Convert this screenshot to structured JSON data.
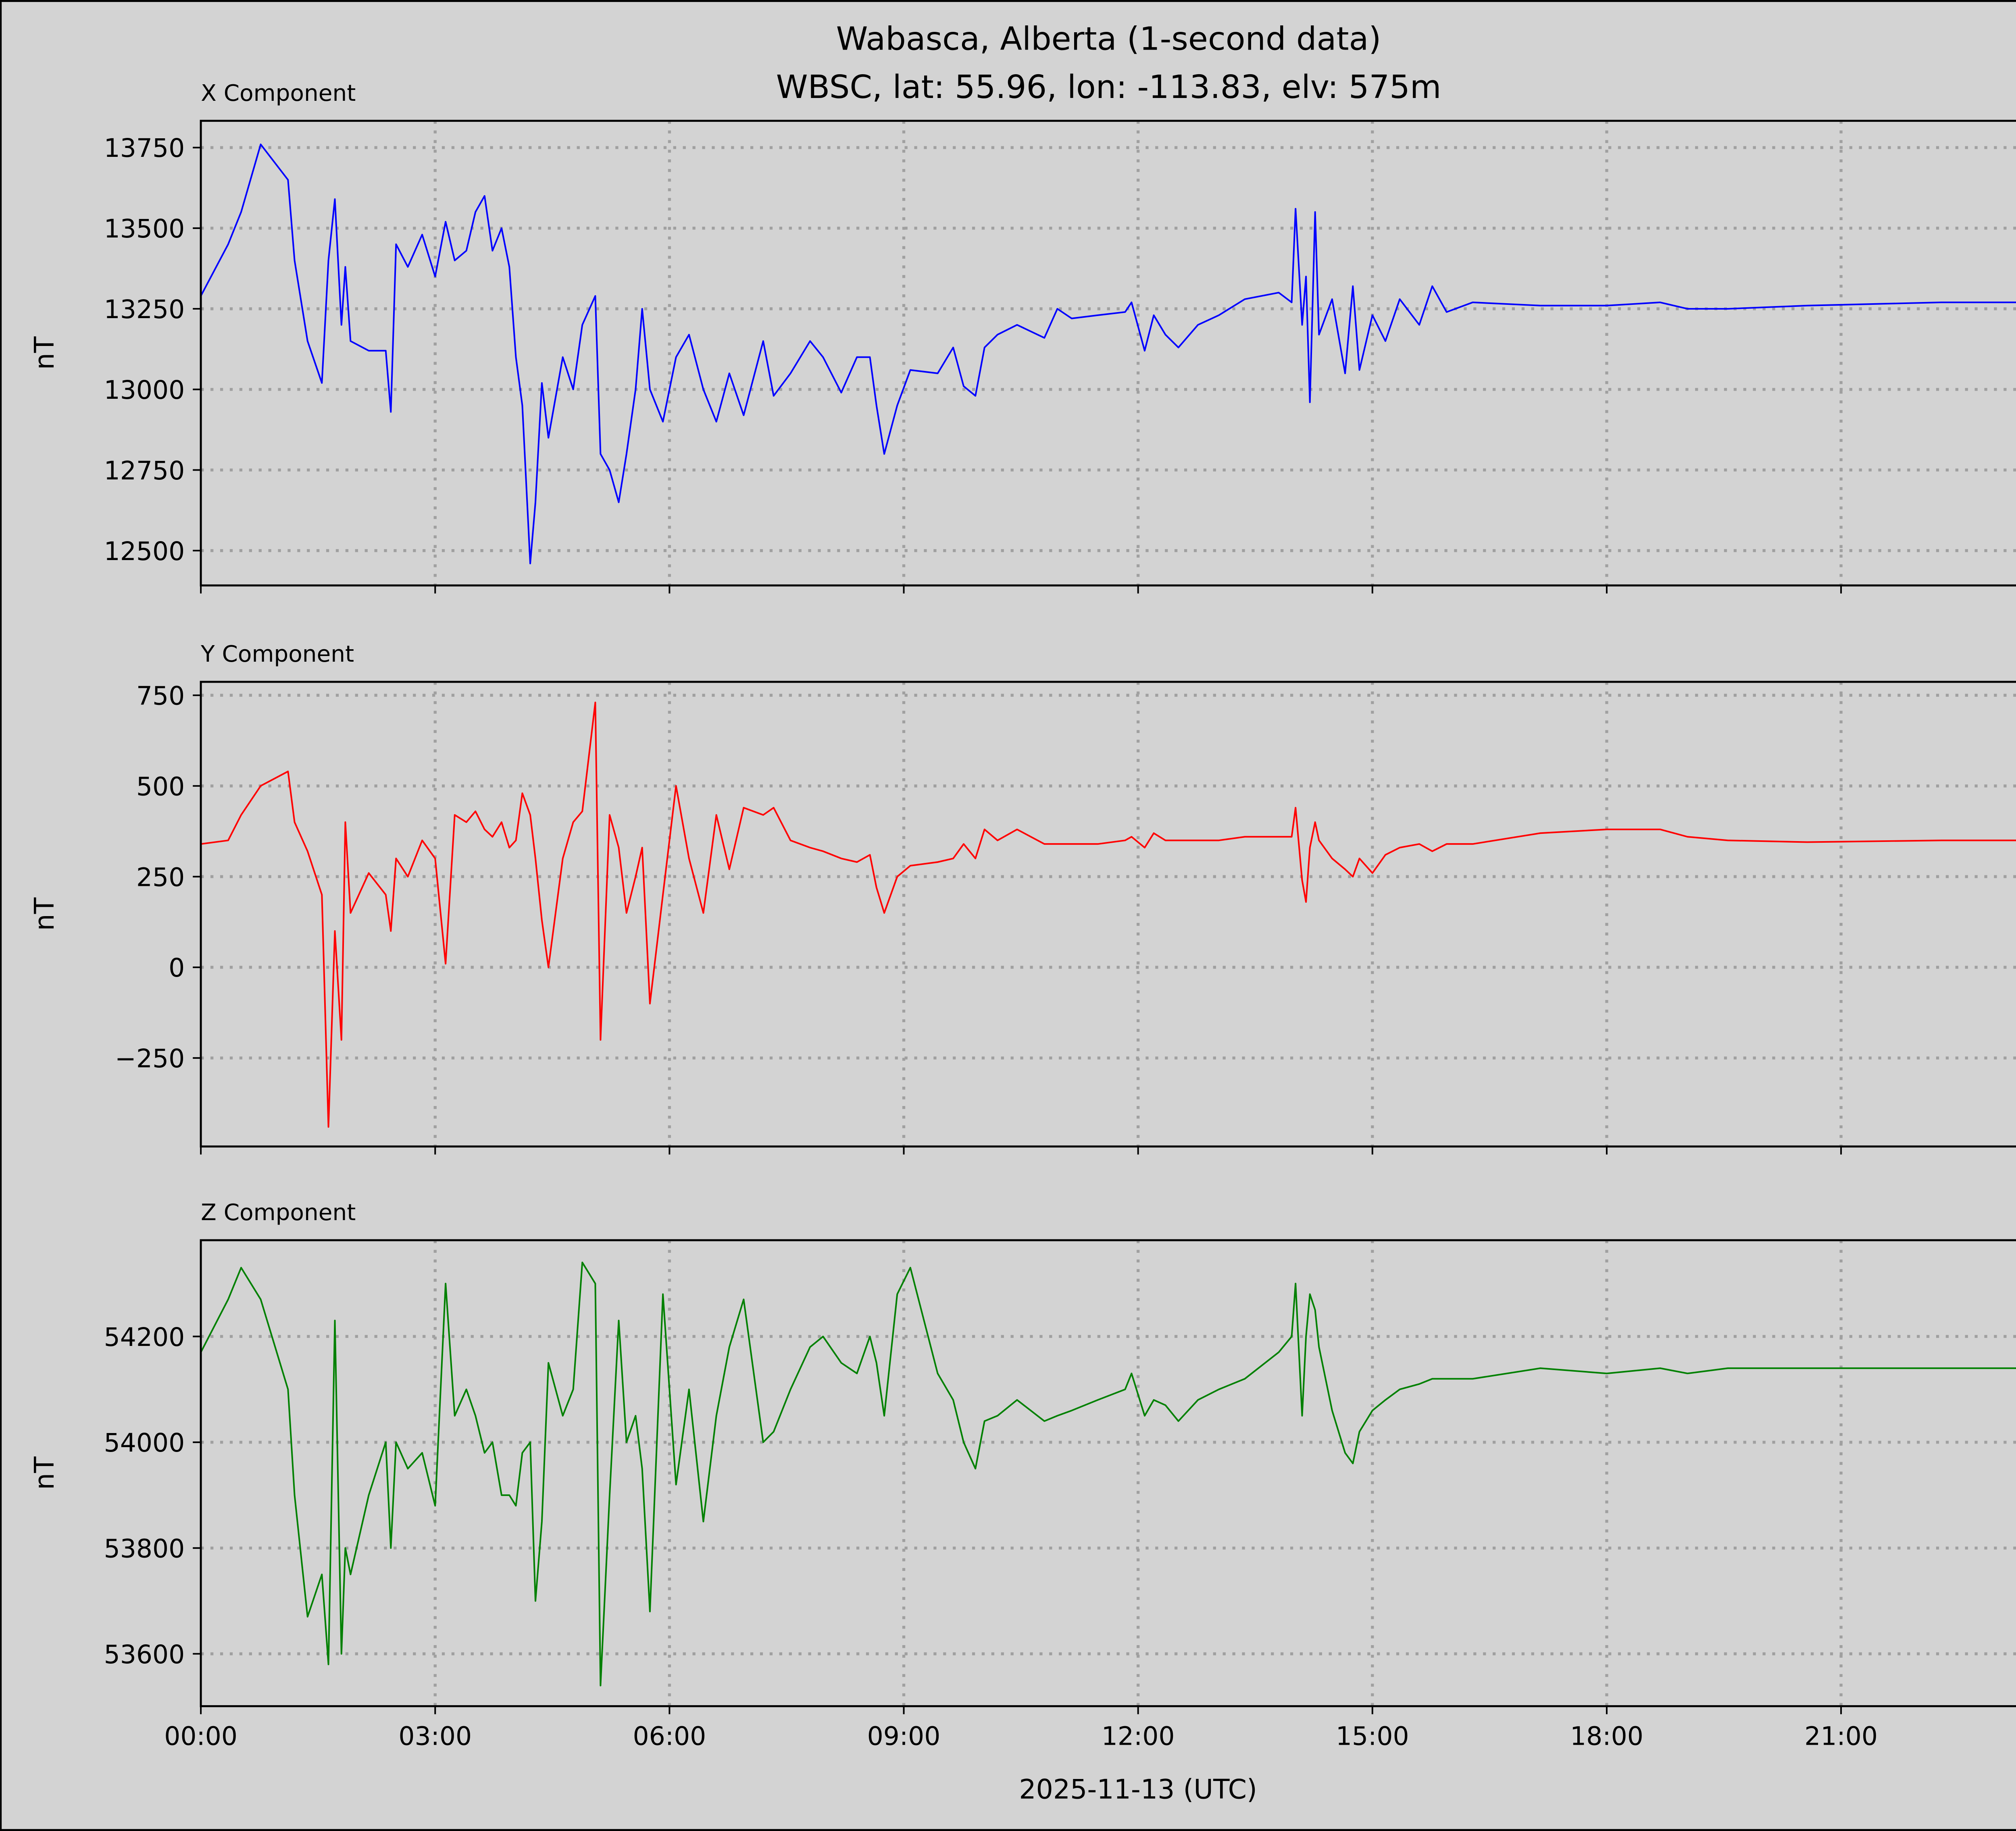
{
  "chart_data": [
    {
      "type": "line",
      "title": "Wabasca, Alberta (1-second data)",
      "subtitle": "WBSC, lat: 55.96, lon: -113.83, elv: 575m",
      "panel_title": "X Component",
      "ylabel": "nT",
      "xlabel": "",
      "color": "#0000ff",
      "ylim": [
        12392,
        13833
      ],
      "yticks": [
        12500,
        12750,
        13000,
        13250,
        13500,
        13750
      ],
      "ytick_labels": [
        "12500",
        "12750",
        "13000",
        "13250",
        "13500",
        "13750"
      ],
      "grid": true,
      "values": [
        13290,
        13450,
        13550,
        13760,
        13650,
        13400,
        13150,
        13020,
        13400,
        13590,
        13200,
        13380,
        13150,
        13120,
        13120,
        12930,
        13450,
        13380,
        13480,
        13350,
        13520,
        13400,
        13430,
        13550,
        13600,
        13430,
        13500,
        13380,
        13100,
        12950,
        12460,
        12650,
        13020,
        12850,
        13100,
        13000,
        13200,
        13290,
        12800,
        12750,
        12650,
        12800,
        13000,
        13250,
        13000,
        12900,
        13100,
        13170,
        13000,
        12900,
        13050,
        12920,
        13150,
        12980,
        13050,
        13150,
        13100,
        12990,
        13100,
        13100,
        12950,
        12800,
        12950,
        13060,
        13050,
        13130,
        13010,
        12980,
        13130,
        13170,
        13200,
        13160,
        13250,
        13220,
        13230,
        13240,
        13270,
        13120,
        13230,
        13170,
        13130,
        13200,
        13230,
        13280,
        13300,
        13270,
        13560,
        13200,
        13350,
        12960,
        13550,
        13170,
        13280,
        13050,
        13320,
        13060,
        13230,
        13150,
        13280,
        13200,
        13320,
        13240,
        13270,
        13260,
        13260,
        13270,
        13250,
        13250,
        13260,
        13270,
        13270
      ]
    },
    {
      "type": "line",
      "panel_title": "Y Component",
      "ylabel": "nT",
      "xlabel": "",
      "color": "#ff0000",
      "ylim": [
        -494,
        787
      ],
      "yticks": [
        -250,
        0,
        250,
        500,
        750
      ],
      "ytick_labels": [
        "−250",
        "0",
        "250",
        "500",
        "750"
      ],
      "grid": true,
      "values": [
        340,
        350,
        420,
        500,
        540,
        400,
        320,
        200,
        -440,
        100,
        -200,
        400,
        150,
        260,
        200,
        100,
        300,
        250,
        350,
        300,
        10,
        420,
        400,
        430,
        380,
        360,
        400,
        330,
        350,
        480,
        420,
        300,
        130,
        0,
        300,
        400,
        430,
        730,
        -200,
        420,
        330,
        150,
        250,
        330,
        -100,
        200,
        500,
        300,
        150,
        420,
        270,
        440,
        420,
        440,
        350,
        330,
        320,
        300,
        290,
        310,
        220,
        150,
        250,
        280,
        290,
        300,
        340,
        300,
        380,
        350,
        380,
        340,
        340,
        340,
        340,
        350,
        360,
        330,
        370,
        350,
        350,
        350,
        350,
        360,
        360,
        360,
        440,
        240,
        180,
        330,
        400,
        350,
        300,
        270,
        250,
        300,
        260,
        310,
        330,
        340,
        320,
        340,
        340,
        370,
        380,
        380,
        360,
        350,
        345,
        350,
        350
      ]
    },
    {
      "type": "line",
      "panel_title": "Z Component",
      "ylabel": "nT",
      "xlabel": "2025-11-13 (UTC)",
      "color": "#008000",
      "ylim": [
        53501,
        54382
      ],
      "yticks": [
        53600,
        53800,
        54000,
        54200
      ],
      "ytick_labels": [
        "53600",
        "53800",
        "54000",
        "54200"
      ],
      "grid": true,
      "values": [
        54170,
        54270,
        54330,
        54270,
        54100,
        53900,
        53670,
        53750,
        53580,
        54230,
        53600,
        53800,
        53750,
        53900,
        54000,
        53800,
        54000,
        53950,
        53980,
        53880,
        54300,
        54050,
        54100,
        54050,
        53980,
        54000,
        53900,
        53900,
        53880,
        53980,
        54000,
        53700,
        53850,
        54150,
        54050,
        54100,
        54340,
        54300,
        53540,
        53900,
        54230,
        54000,
        54050,
        53950,
        53680,
        54280,
        53920,
        54100,
        53850,
        54050,
        54180,
        54270,
        54000,
        54020,
        54100,
        54180,
        54200,
        54150,
        54130,
        54200,
        54150,
        54050,
        54280,
        54330,
        54130,
        54080,
        54000,
        53950,
        54040,
        54050,
        54080,
        54040,
        54050,
        54060,
        54080,
        54100,
        54130,
        54050,
        54080,
        54070,
        54040,
        54080,
        54100,
        54120,
        54170,
        54200,
        54300,
        54050,
        54200,
        54280,
        54250,
        54180,
        54060,
        53980,
        53960,
        54020,
        54060,
        54080,
        54100,
        54110,
        54120,
        54120,
        54120,
        54140,
        54130,
        54140,
        54130,
        54140,
        54140,
        54140,
        54140
      ]
    }
  ],
  "x": [
    "00:00",
    "00:21",
    "00:31",
    "00:46",
    "01:07",
    "01:12",
    "01:22",
    "01:33",
    "01:38",
    "01:43",
    "01:48",
    "01:51",
    "01:55",
    "02:09",
    "02:22",
    "02:26",
    "02:30",
    "02:39",
    "02:50",
    "03:00",
    "03:08",
    "03:15",
    "03:24",
    "03:31",
    "03:38",
    "03:44",
    "03:51",
    "03:57",
    "04:02",
    "04:07",
    "04:13",
    "04:17",
    "04:22",
    "04:27",
    "04:38",
    "04:46",
    "04:53",
    "05:03",
    "05:07",
    "05:14",
    "05:21",
    "05:27",
    "05:34",
    "05:39",
    "05:45",
    "05:55",
    "06:05",
    "06:15",
    "06:26",
    "06:36",
    "06:46",
    "06:57",
    "07:12",
    "07:20",
    "07:33",
    "07:48",
    "07:58",
    "08:12",
    "08:24",
    "08:34",
    "08:39",
    "08:45",
    "08:55",
    "09:05",
    "09:26",
    "09:38",
    "09:46",
    "09:55",
    "10:02",
    "10:12",
    "10:27",
    "10:48",
    "10:58",
    "11:09",
    "11:29",
    "11:50",
    "11:55",
    "12:05",
    "12:12",
    "12:21",
    "12:31",
    "12:46",
    "13:02",
    "13:22",
    "13:48",
    "13:58",
    "14:01",
    "14:06",
    "14:09",
    "14:12",
    "14:16",
    "14:19",
    "14:29",
    "14:39",
    "14:45",
    "14:50",
    "15:00",
    "15:10",
    "15:21",
    "15:36",
    "15:46",
    "15:57",
    "16:17",
    "17:09",
    "18:00",
    "18:41",
    "19:02",
    "19:33",
    "20:34",
    "22:17",
    "24:00"
  ],
  "xlim": [
    "00:00",
    "24:00"
  ],
  "xticks": [
    "00:00",
    "03:00",
    "06:00",
    "09:00",
    "12:00",
    "15:00",
    "18:00",
    "21:00"
  ],
  "colors": {
    "background": "#d3d3d3",
    "grid": "#a0a0a0"
  }
}
